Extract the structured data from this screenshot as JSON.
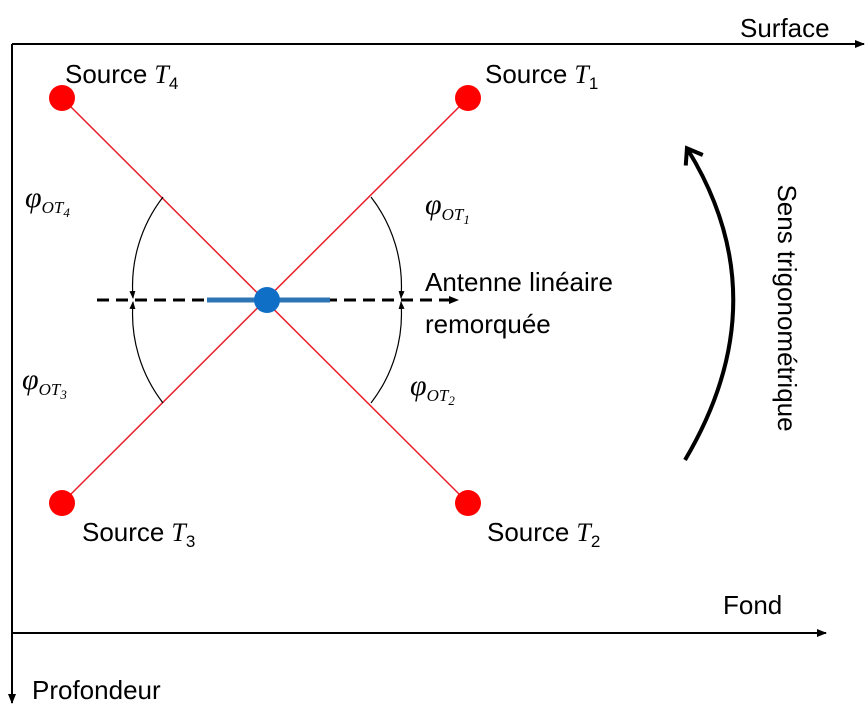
{
  "axes": {
    "surface": "Surface",
    "fond": "Fond",
    "profondeur": "Profondeur"
  },
  "sources": [
    {
      "text": "Source",
      "symbol": "T",
      "subscript": "4"
    },
    {
      "text": "Source",
      "symbol": "T",
      "subscript": "1"
    },
    {
      "text": "Source",
      "symbol": "T",
      "subscript": "3"
    },
    {
      "text": "Source",
      "symbol": "T",
      "subscript": "2"
    }
  ],
  "angles": [
    {
      "symbol": "φ",
      "index": "OT",
      "subscript": "4"
    },
    {
      "symbol": "φ",
      "index": "OT",
      "subscript": "1"
    },
    {
      "symbol": "φ",
      "index": "OT",
      "subscript": "3"
    },
    {
      "symbol": "φ",
      "index": "OT",
      "subscript": "2"
    }
  ],
  "antenna": [
    "Antenne linéaire",
    "remorquée"
  ],
  "rotation": "Sens trigonométrique"
}
